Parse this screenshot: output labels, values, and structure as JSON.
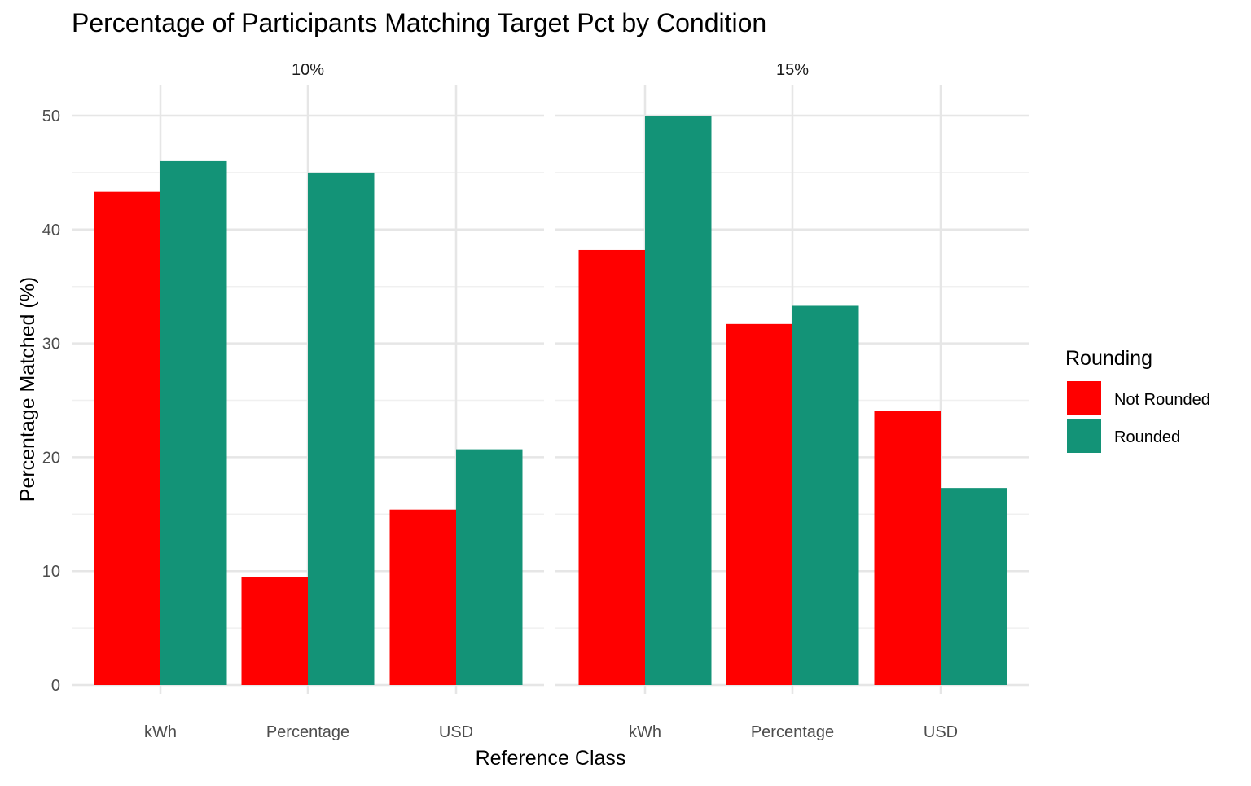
{
  "chart_data": {
    "type": "bar",
    "title": "Percentage of Participants Matching Target Pct by Condition",
    "xlabel": "Reference Class",
    "ylabel": "Percentage Matched (%)",
    "ylim": [
      0,
      52.5
    ],
    "yticks": [
      0,
      10,
      20,
      30,
      40,
      50
    ],
    "grid": true,
    "legend": {
      "title": "Rounding",
      "position": "right"
    },
    "categories": [
      "kWh",
      "Percentage",
      "USD"
    ],
    "facets": [
      {
        "label": "10%",
        "series": [
          {
            "name": "Not Rounded",
            "color": "#FF0000",
            "values": [
              43.3,
              9.5,
              15.4
            ]
          },
          {
            "name": "Rounded",
            "color": "#139377",
            "values": [
              46.0,
              45.0,
              20.7
            ]
          }
        ]
      },
      {
        "label": "15%",
        "series": [
          {
            "name": "Not Rounded",
            "color": "#FF0000",
            "values": [
              38.2,
              31.7,
              24.1
            ]
          },
          {
            "name": "Rounded",
            "color": "#139377",
            "values": [
              50.0,
              33.3,
              17.3
            ]
          }
        ]
      }
    ]
  }
}
